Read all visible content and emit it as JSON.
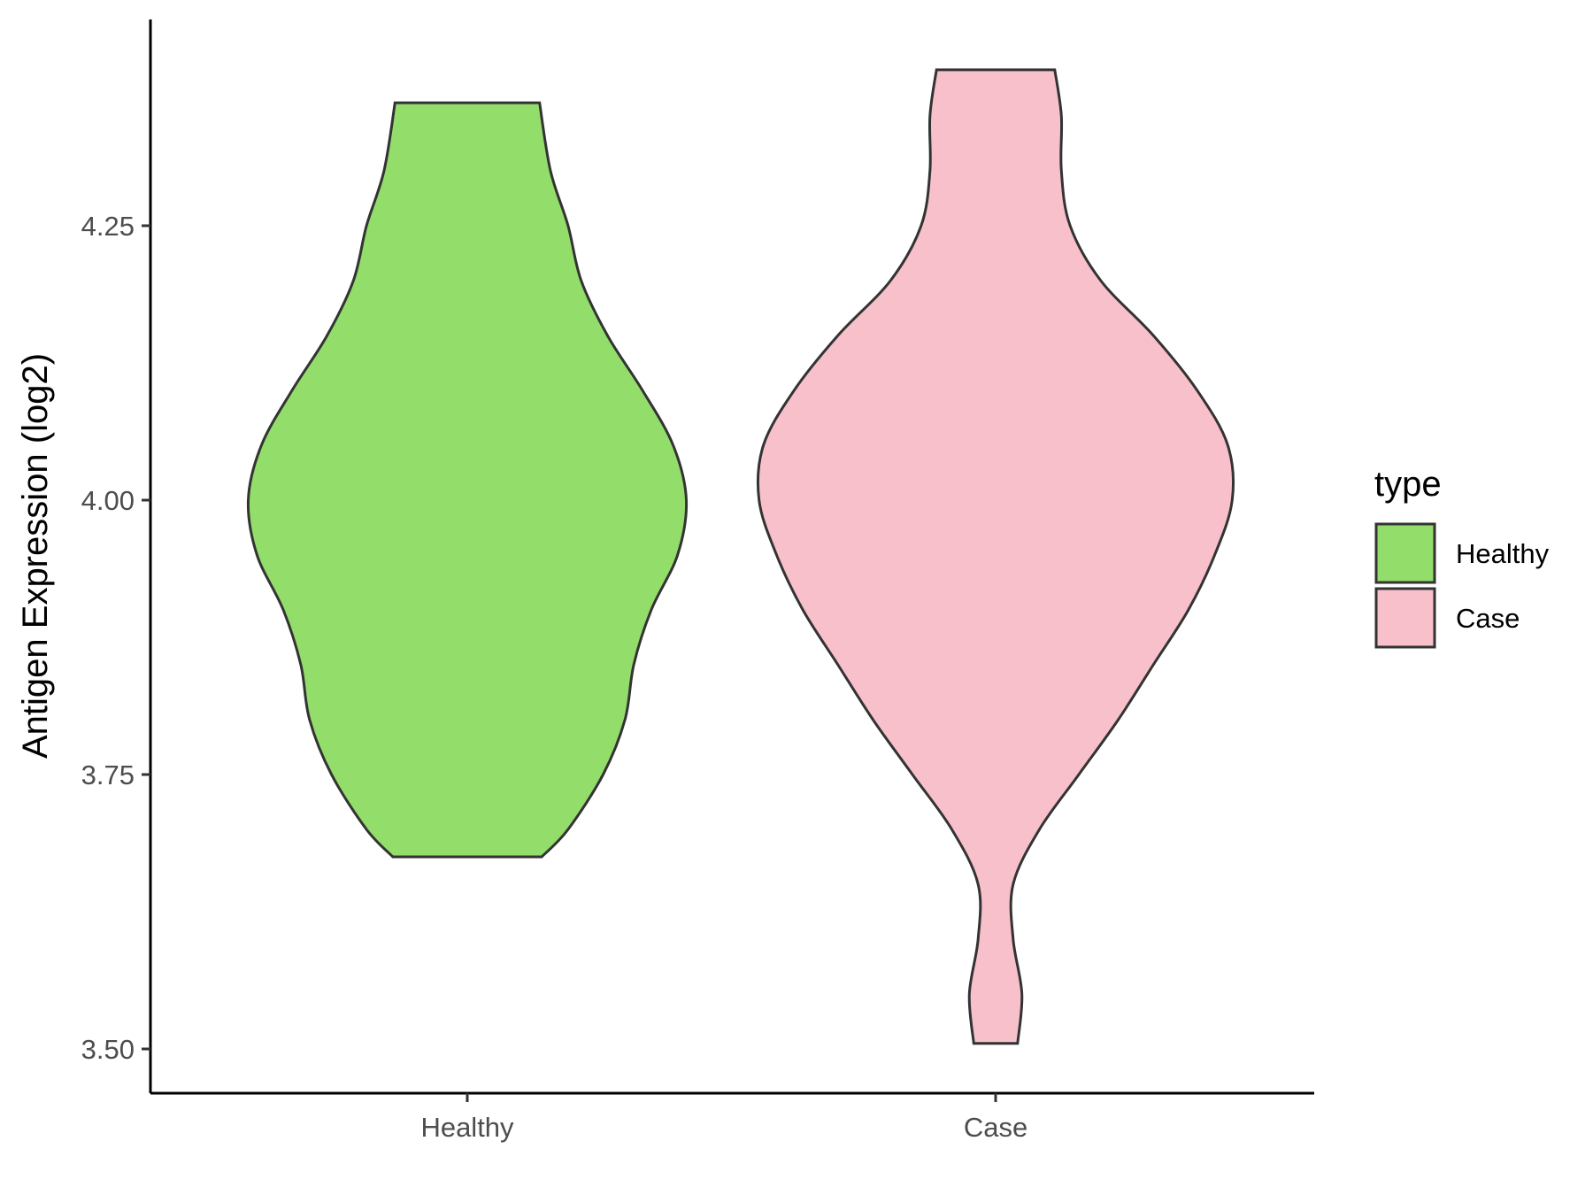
{
  "chart_data": {
    "type": "violin",
    "title": "",
    "xlabel": "",
    "ylabel": "Antigen Expression (log2)",
    "categories": [
      "Healthy",
      "Case"
    ],
    "ylim": [
      3.46,
      4.45
    ],
    "yticks": [
      3.5,
      3.75,
      4.0,
      4.25
    ],
    "ytick_labels": [
      "3.50",
      "3.75",
      "4.00",
      "4.25"
    ],
    "grid": false,
    "legend": {
      "title": "type",
      "placement": "right",
      "entries": [
        {
          "label": "Healthy",
          "color": "#93DD6B"
        },
        {
          "label": "Case",
          "color": "#F7C0CB"
        }
      ]
    },
    "series": [
      {
        "name": "Healthy",
        "color": "#93DD6B",
        "min": 3.675,
        "max": 4.362,
        "density_profile": [
          [
            3.675,
            0.17
          ],
          [
            3.7,
            0.23
          ],
          [
            3.75,
            0.31
          ],
          [
            3.8,
            0.36
          ],
          [
            3.85,
            0.38
          ],
          [
            3.9,
            0.42
          ],
          [
            3.95,
            0.48
          ],
          [
            4.0,
            0.5
          ],
          [
            4.05,
            0.47
          ],
          [
            4.1,
            0.4
          ],
          [
            4.15,
            0.32
          ],
          [
            4.2,
            0.26
          ],
          [
            4.25,
            0.23
          ],
          [
            4.3,
            0.19
          ],
          [
            4.362,
            0.165
          ]
        ]
      },
      {
        "name": "Case",
        "color": "#F7C0CB",
        "min": 3.505,
        "max": 4.392,
        "density_profile": [
          [
            3.505,
            0.05
          ],
          [
            3.55,
            0.06
          ],
          [
            3.6,
            0.04
          ],
          [
            3.65,
            0.04
          ],
          [
            3.7,
            0.1
          ],
          [
            3.75,
            0.19
          ],
          [
            3.8,
            0.28
          ],
          [
            3.85,
            0.36
          ],
          [
            3.9,
            0.44
          ],
          [
            3.95,
            0.5
          ],
          [
            4.0,
            0.54
          ],
          [
            4.05,
            0.53
          ],
          [
            4.1,
            0.46
          ],
          [
            4.15,
            0.36
          ],
          [
            4.2,
            0.24
          ],
          [
            4.25,
            0.17
          ],
          [
            4.3,
            0.15
          ],
          [
            4.35,
            0.15
          ],
          [
            4.392,
            0.135
          ]
        ]
      }
    ]
  }
}
